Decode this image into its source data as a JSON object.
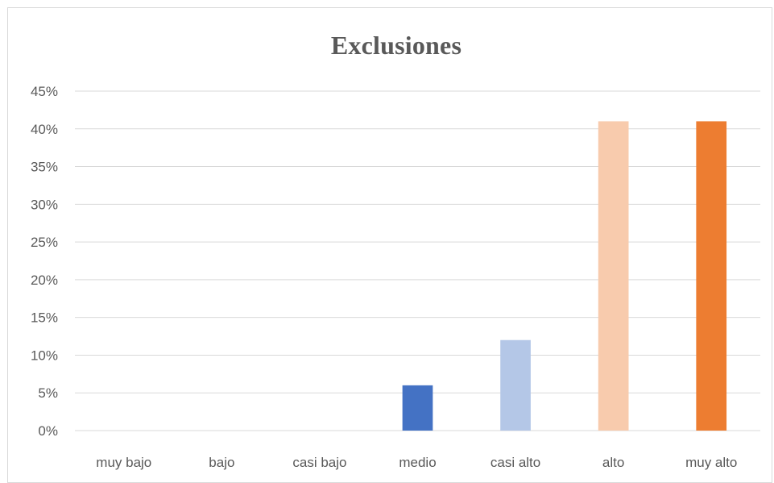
{
  "chart_data": {
    "type": "bar",
    "title": "Exclusiones",
    "xlabel": "",
    "ylabel": "",
    "categories": [
      "muy bajo",
      "bajo",
      "casi bajo",
      "medio",
      "casi alto",
      "alto",
      "muy alto"
    ],
    "values": [
      0,
      0,
      0,
      6,
      12,
      41,
      41
    ],
    "colors": [
      "#4472c4",
      "#4472c4",
      "#4472c4",
      "#4472c4",
      "#b4c7e7",
      "#f8cbad",
      "#ed7d31"
    ],
    "ylim": [
      0,
      45
    ],
    "yticks": [
      "0%",
      "5%",
      "10%",
      "15%",
      "20%",
      "25%",
      "30%",
      "35%",
      "40%",
      "45%"
    ],
    "grid": true,
    "legend": "none"
  }
}
